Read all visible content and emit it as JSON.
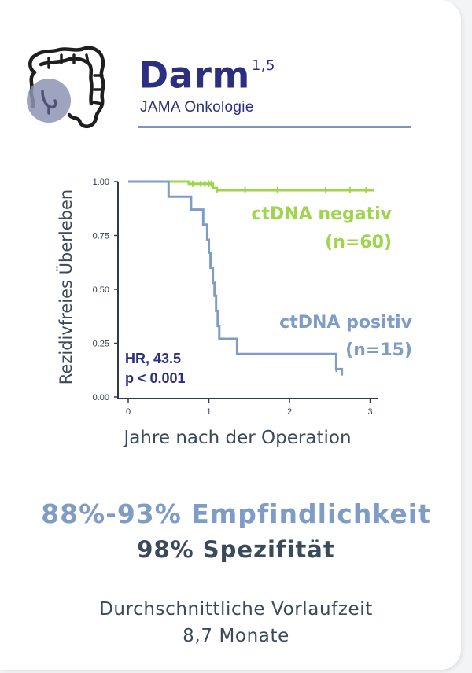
{
  "header": {
    "title": "Darm",
    "superscript": "1,5",
    "subtitle": "JAMA Onkologie",
    "icon": "colon-icon"
  },
  "colors": {
    "navy": "#2c2f7f",
    "blue": "#7f9cc7",
    "green": "#9dd54b",
    "dark": "#3b4a5a",
    "rule": "#8093b8"
  },
  "chart_data": {
    "type": "line",
    "title": "",
    "xlabel": "Jahre nach der Operation",
    "ylabel": "Rezidivfreies Überleben",
    "xlim": [
      0,
      3.1
    ],
    "ylim": [
      0,
      1
    ],
    "x_ticks": [
      "0",
      "1",
      "2",
      "3"
    ],
    "y_ticks": [
      "0.00",
      "0.25",
      "0.50",
      "0.75",
      "1.00"
    ],
    "series": [
      {
        "name": "ctDNA negativ",
        "n_label": "(n=60)",
        "points": [
          [
            0,
            1
          ],
          [
            0.75,
            1
          ],
          [
            0.75,
            0.99
          ],
          [
            1.05,
            0.99
          ],
          [
            1.05,
            0.97
          ],
          [
            1.1,
            0.97
          ],
          [
            1.1,
            0.96
          ],
          [
            3.05,
            0.96
          ]
        ],
        "censor_x": [
          0.8,
          0.9,
          0.95,
          1.0,
          1.03,
          1.1,
          1.45,
          1.85,
          2.45,
          2.75,
          2.95
        ]
      },
      {
        "name": "ctDNA positiv",
        "n_label": "(n=15)",
        "points": [
          [
            0,
            1
          ],
          [
            0.5,
            1
          ],
          [
            0.5,
            0.93
          ],
          [
            0.78,
            0.93
          ],
          [
            0.78,
            0.87
          ],
          [
            0.93,
            0.87
          ],
          [
            0.93,
            0.8
          ],
          [
            0.98,
            0.8
          ],
          [
            0.98,
            0.73
          ],
          [
            1.0,
            0.73
          ],
          [
            1.0,
            0.67
          ],
          [
            1.02,
            0.67
          ],
          [
            1.02,
            0.6
          ],
          [
            1.05,
            0.6
          ],
          [
            1.05,
            0.53
          ],
          [
            1.07,
            0.53
          ],
          [
            1.07,
            0.47
          ],
          [
            1.09,
            0.47
          ],
          [
            1.09,
            0.4
          ],
          [
            1.11,
            0.4
          ],
          [
            1.11,
            0.33
          ],
          [
            1.13,
            0.33
          ],
          [
            1.13,
            0.27
          ],
          [
            1.35,
            0.27
          ],
          [
            1.35,
            0.2
          ],
          [
            2.58,
            0.2
          ],
          [
            2.58,
            0.13
          ],
          [
            2.65,
            0.13
          ],
          [
            2.65,
            0.1
          ]
        ],
        "censor_x": [
          2.58
        ]
      }
    ],
    "annotation": {
      "hr": "HR, 43.5",
      "p": "p < 0.001"
    }
  },
  "metrics": {
    "sensitivity": "88%-93% Empfindlichkeit",
    "specificity": "98% Spezifität",
    "lead_time_label": "Durchschnittliche Vorlaufzeit",
    "lead_time_value": "8,7 Monate"
  }
}
